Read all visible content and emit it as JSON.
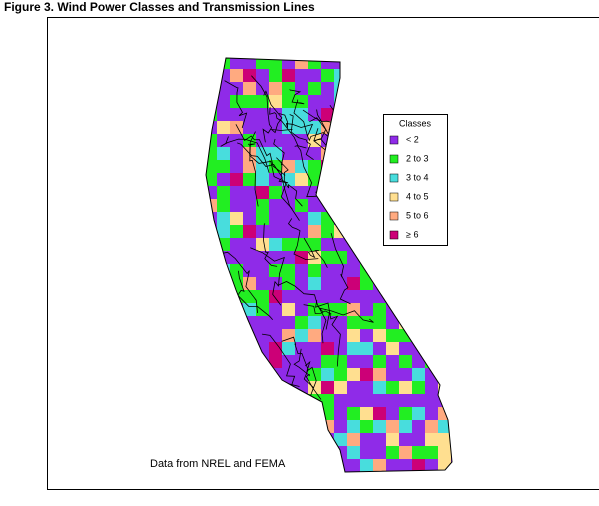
{
  "title": "Figure 3.  Wind Power Classes and Transmission Lines",
  "legend": {
    "title": "Classes",
    "items": [
      {
        "label": "< 2",
        "color": "#8f2be8"
      },
      {
        "label": "2 to 3",
        "color": "#22ee22"
      },
      {
        "label": "3 to 4",
        "color": "#48dddd"
      },
      {
        "label": "4 to 5",
        "color": "#ffdf90"
      },
      {
        "label": "5 to 6",
        "color": "#ffaa80"
      },
      {
        "label": "≥ 6",
        "color": "#cc0077"
      }
    ]
  },
  "note": "Data from NREL and FEMA"
}
